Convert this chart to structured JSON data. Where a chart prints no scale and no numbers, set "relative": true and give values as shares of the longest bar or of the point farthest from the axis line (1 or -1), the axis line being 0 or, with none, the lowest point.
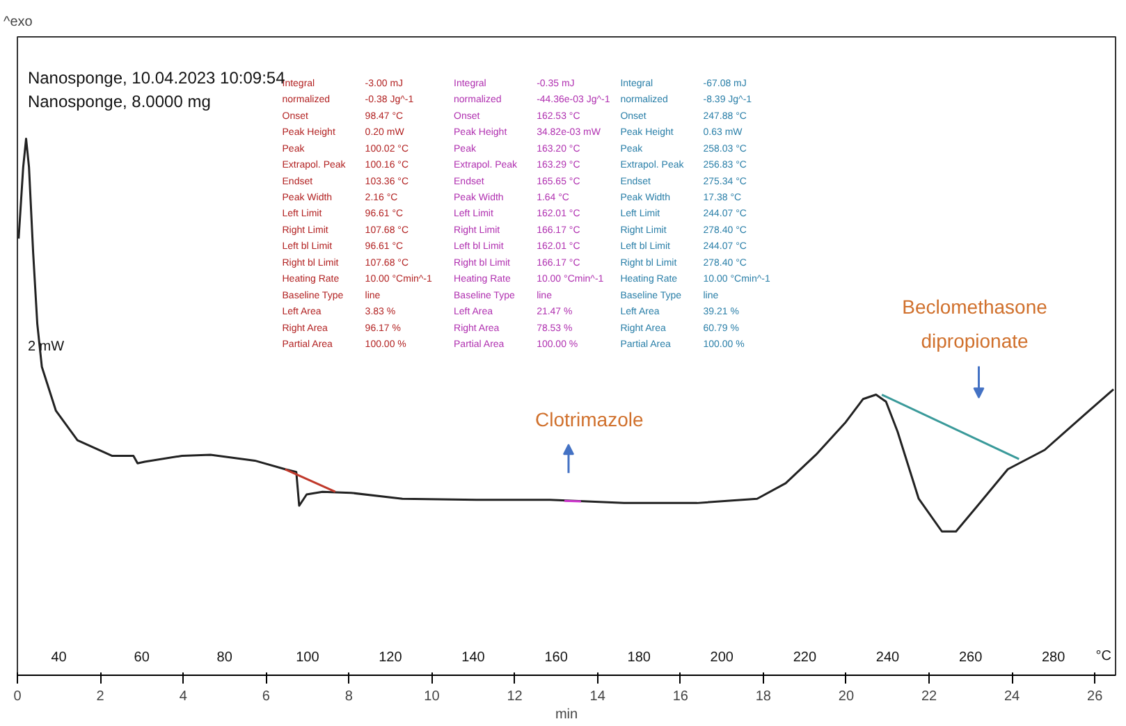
{
  "chart_data": {
    "type": "line",
    "relative": true,
    "title": "Nanosponge, 10.04.2023 10:09:54",
    "subtitle": "Nanosponge, 8.0000 mg",
    "ylabel": "2 mW",
    "xlabel": "min",
    "x2label": "°C",
    "xlim": [
      0,
      26.5
    ],
    "xticks": [
      0,
      2,
      4,
      6,
      8,
      10,
      12,
      14,
      16,
      18,
      20,
      22,
      24,
      26
    ],
    "x2lim": [
      30,
      295
    ],
    "x2ticks": [
      40,
      60,
      80,
      100,
      120,
      140,
      160,
      180,
      200,
      220,
      240,
      260,
      280
    ],
    "grid": false,
    "marker": "none",
    "line_style": "solid",
    "series": [
      {
        "color": "#222222",
        "x": [
          0.03,
          0.14,
          0.21,
          0.28,
          0.38,
          0.48,
          0.59,
          0.93,
          1.45,
          2.28,
          2.8,
          2.9,
          3.07,
          3.97,
          4.66,
          5.73,
          6.46,
          6.73,
          6.8,
          6.98,
          7.36,
          8.05,
          9.29,
          11.08,
          12.85,
          14.64,
          16.4,
          17.85,
          18.54,
          19.27,
          19.99,
          20.41,
          20.72,
          20.96,
          21.24,
          21.75,
          22.31,
          22.65,
          23.17,
          23.9,
          24.79,
          25.86,
          26.45
        ],
        "values": [
          0.814,
          0.947,
          1,
          0.947,
          0.788,
          0.655,
          0.575,
          0.493,
          0.438,
          0.409,
          0.409,
          0.395,
          0.398,
          0.409,
          0.411,
          0.4,
          0.384,
          0.379,
          0.316,
          0.337,
          0.342,
          0.34,
          0.329,
          0.327,
          0.327,
          0.321,
          0.321,
          0.329,
          0.358,
          0.411,
          0.472,
          0.515,
          0.523,
          0.51,
          0.454,
          0.329,
          0.268,
          0.268,
          0.316,
          0.384,
          0.42,
          0.493,
          0.533
        ]
      },
      {
        "color": "#c0392b",
        "x": [
          6.46,
          7.67
        ],
        "values": [
          0.384,
          0.342
        ]
      },
      {
        "color": "#cc33cc",
        "x": [
          13.2,
          13.6
        ],
        "values": [
          0.325,
          0.324
        ]
      },
      {
        "color": "#3a9a9a",
        "x": [
          20.86,
          24.17
        ],
        "values": [
          0.523,
          0.403
        ]
      }
    ],
    "annotations": [
      "^exo",
      "Integral\t-3.00 mJ\n normalized\t-0.38 Jg^-1\nOnset\t98.47 °C\nPeak Height\t0.20 mW\nPeak\t100.02 °C\nExtrapol. Peak\t100.16 °C\nEndset\t103.36 °C\nPeak Width\t2.16 °C\nLeft Limit\t96.61 °C\nRight Limit\t107.68 °C\nLeft bl Limit\t96.61 °C\nRight bl Limit\t107.68 °C\nHeating Rate\t10.00 °Cmin^-1\nBaseline Type\tline\nLeft Area\t3.83 %\nRight Area\t96.17 %\nPartial Area\t100.00 %",
      "Integral\t-0.35 mJ\n normalized\t-44.36e-03 Jg^-1\nOnset\t162.53 °C\nPeak Height\t34.82e-03 mW\nPeak\t163.20 °C\nExtrapol. Peak\t163.29 °C\nEndset\t165.65 °C\nPeak Width\t1.64 °C\nLeft Limit\t162.01 °C\nRight Limit\t166.17 °C\nLeft bl Limit\t162.01 °C\nRight bl Limit\t166.17 °C\nHeating Rate\t10.00 °Cmin^-1\nBaseline Type\tline\nLeft Area\t21.47 %\nRight Area\t78.53 %\nPartial Area\t100.00 %",
      "Integral\t-67.08 mJ\n normalized\t-8.39 Jg^-1\nOnset\t247.88 °C\nPeak Height\t0.63 mW\nPeak\t258.03 °C\nExtrapol. Peak\t256.83 °C\nEndset\t275.34 °C\nPeak Width\t17.38 °C\nLeft Limit\t244.07 °C\nRight Limit\t278.40 °C\nLeft bl Limit\t244.07 °C\nRight bl Limit\t278.40 °C\nHeating Rate\t10.00 °Cmin^-1\nBaseline Type\tline\nLeft Area\t39.21 %\nRight Area\t60.79 %\nPartial Area\t100.00 %",
      "Clotrimazole",
      "Beclomethasone\ndipropionate"
    ]
  }
}
